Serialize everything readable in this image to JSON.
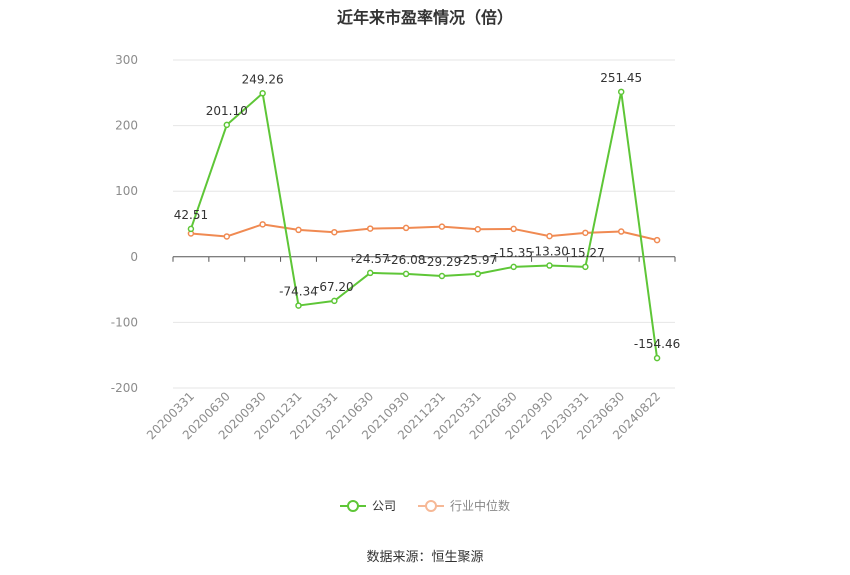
{
  "chart_data": {
    "type": "line",
    "title": "近年来市盈率情况（倍）",
    "categories": [
      "20200331",
      "20200630",
      "20200930",
      "20201231",
      "20210331",
      "20210630",
      "20210930",
      "20211231",
      "20220331",
      "20220630",
      "20220930",
      "20230331",
      "20230630",
      "20240822"
    ],
    "ylim": [
      -200,
      300
    ],
    "yticks": [
      -200,
      -100,
      0,
      100,
      200,
      300
    ],
    "grid": true,
    "legend_position": "bottom",
    "series": [
      {
        "name": "公司",
        "color": "#5ec637",
        "values": [
          42.51,
          201.1,
          249.26,
          -74.34,
          -67.2,
          -24.57,
          -26.08,
          -29.29,
          -25.97,
          -15.35,
          -13.3,
          -15.27,
          251.45,
          -154.46
        ],
        "labels": [
          "42.51",
          "201.10",
          "249.26",
          "-74.34",
          "-67.20",
          "-24.57",
          "-26.08",
          "-29.29",
          "-25.97",
          "-15.35",
          "-13.30",
          "-15.27",
          "251.45",
          "-154.46"
        ]
      },
      {
        "name": "行业中位数",
        "color": "#f08a52",
        "values": [
          35.5,
          31.0,
          49.5,
          41.0,
          37.5,
          43.0,
          44.0,
          46.0,
          42.0,
          42.5,
          31.5,
          36.5,
          38.5,
          25.5
        ]
      }
    ]
  },
  "source": "数据来源：恒生聚源"
}
